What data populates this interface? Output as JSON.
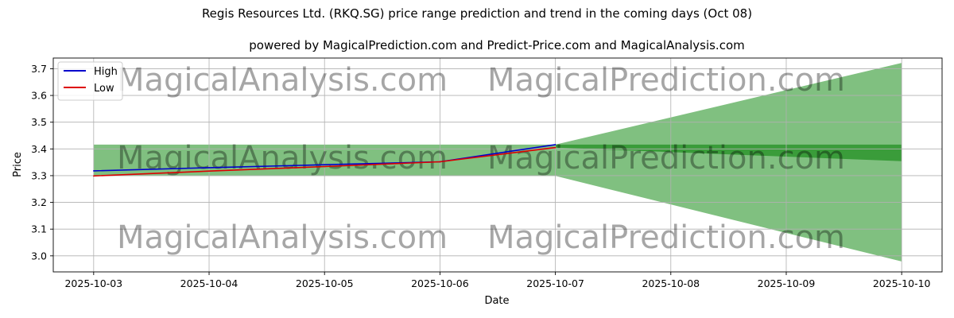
{
  "chart_data": {
    "type": "line",
    "title": "Regis Resources Ltd. (RKQ.SG) price range prediction and trend in the coming days (Oct 08)",
    "subtitle": "powered by MagicalPrediction.com and Predict-Price.com and MagicalAnalysis.com",
    "xlabel": "Date",
    "ylabel": "Price",
    "x_ticks": [
      "2025-10-03",
      "2025-10-04",
      "2025-10-05",
      "2025-10-06",
      "2025-10-07",
      "2025-10-08",
      "2025-10-09",
      "2025-10-10"
    ],
    "y_ticks": [
      3.0,
      3.1,
      3.2,
      3.3,
      3.4,
      3.5,
      3.6,
      3.7
    ],
    "xlim": [
      -0.35,
      7.35
    ],
    "ylim": [
      2.94,
      3.74
    ],
    "grid": true,
    "legend_position": "top-left",
    "series": [
      {
        "name": "High",
        "color": "#0000cc",
        "x": [
          0,
          1,
          2,
          3,
          4
        ],
        "values": [
          3.318,
          3.33,
          3.341,
          3.352,
          3.416
        ]
      },
      {
        "name": "Low",
        "color": "#dd0000",
        "x": [
          0,
          1,
          2,
          3,
          4
        ],
        "values": [
          3.299,
          3.317,
          3.334,
          3.352,
          3.405
        ]
      }
    ],
    "bands": [
      {
        "color": "#80c080",
        "upper": [
          [
            0,
            3.416
          ],
          [
            4,
            3.416
          ],
          [
            7,
            3.722
          ]
        ],
        "lower": [
          [
            0,
            3.299
          ],
          [
            4,
            3.299
          ],
          [
            7,
            2.979
          ]
        ]
      },
      {
        "color": "#3a9c3a",
        "upper": [
          [
            4,
            3.416
          ],
          [
            7,
            3.416
          ]
        ],
        "lower": [
          [
            4,
            3.405
          ],
          [
            7,
            3.354
          ]
        ]
      }
    ],
    "watermarks": [
      "MagicalAnalysis.com",
      "MagicalPrediction.com"
    ]
  }
}
